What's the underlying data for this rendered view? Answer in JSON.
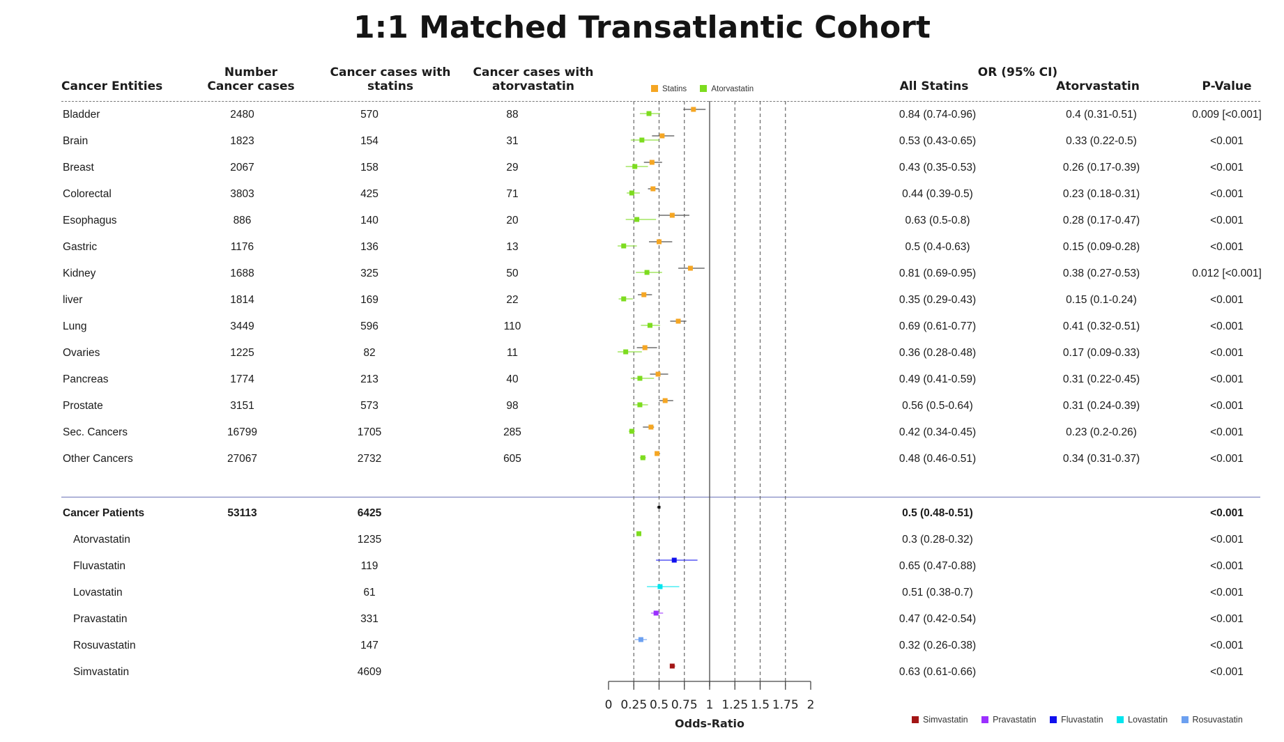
{
  "title": "1:1 Matched Transatlantic Cohort",
  "headers": {
    "entities": "Cancer Entities",
    "number_l1": "Number",
    "number_l2": "Cancer cases",
    "statins_l1": "Cancer cases with",
    "statins_l2": "statins",
    "atorva_l1": "Cancer cases with",
    "atorva_l2": "atorvastatin",
    "or_group": "OR (95% CI)",
    "all_statins": "All Statins",
    "atorvastatin": "Atorvastatin",
    "pvalue": "P-Value"
  },
  "legend_top": [
    {
      "label": "Statins",
      "color": "#f5a623"
    },
    {
      "label": "Atorvastatin",
      "color": "#7ddc1f"
    }
  ],
  "legend_bottom": [
    {
      "label": "Simvastatin",
      "color": "#a31515"
    },
    {
      "label": "Pravastatin",
      "color": "#9b30ff"
    },
    {
      "label": "Fluvastatin",
      "color": "#1010ee"
    },
    {
      "label": "Lovastatin",
      "color": "#00e5ee"
    },
    {
      "label": "Rosuvastatin",
      "color": "#6ca0f0"
    }
  ],
  "cancer_rows": [
    {
      "name": "Bladder",
      "n": "2480",
      "statins": "570",
      "atorva": "88",
      "or_all": "0.84 (0.74-0.96)",
      "or_atorva": "0.4 (0.31-0.51)",
      "p": "0.009 [<0.001]"
    },
    {
      "name": "Brain",
      "n": "1823",
      "statins": "154",
      "atorva": "31",
      "or_all": "0.53 (0.43-0.65)",
      "or_atorva": "0.33 (0.22-0.5)",
      "p": "<0.001"
    },
    {
      "name": "Breast",
      "n": "2067",
      "statins": "158",
      "atorva": "29",
      "or_all": "0.43 (0.35-0.53)",
      "or_atorva": "0.26 (0.17-0.39)",
      "p": "<0.001"
    },
    {
      "name": "Colorectal",
      "n": "3803",
      "statins": "425",
      "atorva": "71",
      "or_all": "0.44 (0.39-0.5)",
      "or_atorva": "0.23 (0.18-0.31)",
      "p": "<0.001"
    },
    {
      "name": "Esophagus",
      "n": "886",
      "statins": "140",
      "atorva": "20",
      "or_all": "0.63 (0.5-0.8)",
      "or_atorva": "0.28 (0.17-0.47)",
      "p": "<0.001"
    },
    {
      "name": "Gastric",
      "n": "1176",
      "statins": "136",
      "atorva": "13",
      "or_all": "0.5 (0.4-0.63)",
      "or_atorva": "0.15 (0.09-0.28)",
      "p": "<0.001"
    },
    {
      "name": "Kidney",
      "n": "1688",
      "statins": "325",
      "atorva": "50",
      "or_all": "0.81 (0.69-0.95)",
      "or_atorva": "0.38 (0.27-0.53)",
      "p": "0.012 [<0.001]"
    },
    {
      "name": "liver",
      "n": "1814",
      "statins": "169",
      "atorva": "22",
      "or_all": "0.35 (0.29-0.43)",
      "or_atorva": "0.15 (0.1-0.24)",
      "p": "<0.001"
    },
    {
      "name": "Lung",
      "n": "3449",
      "statins": "596",
      "atorva": "110",
      "or_all": "0.69 (0.61-0.77)",
      "or_atorva": "0.41 (0.32-0.51)",
      "p": "<0.001"
    },
    {
      "name": "Ovaries",
      "n": "1225",
      "statins": "82",
      "atorva": "11",
      "or_all": "0.36 (0.28-0.48)",
      "or_atorva": "0.17 (0.09-0.33)",
      "p": "<0.001"
    },
    {
      "name": "Pancreas",
      "n": "1774",
      "statins": "213",
      "atorva": "40",
      "or_all": "0.49 (0.41-0.59)",
      "or_atorva": "0.31 (0.22-0.45)",
      "p": "<0.001"
    },
    {
      "name": "Prostate",
      "n": "3151",
      "statins": "573",
      "atorva": "98",
      "or_all": "0.56 (0.5-0.64)",
      "or_atorva": "0.31 (0.24-0.39)",
      "p": "<0.001"
    },
    {
      "name": "Sec. Cancers",
      "n": "16799",
      "statins": "1705",
      "atorva": "285",
      "or_all": "0.42 (0.34-0.45)",
      "or_atorva": "0.23 (0.2-0.26)",
      "p": "<0.001"
    },
    {
      "name": "Other Cancers",
      "n": "27067",
      "statins": "2732",
      "atorva": "605",
      "or_all": "0.48 (0.46-0.51)",
      "or_atorva": "0.34 (0.31-0.37)",
      "p": "<0.001"
    }
  ],
  "patients_total": {
    "name": "Cancer Patients",
    "n": "53113",
    "statins": "6425",
    "or_all": "0.5 (0.48-0.51)",
    "p": "<0.001"
  },
  "statin_rows": [
    {
      "name": "Atorvastatin",
      "statins": "1235",
      "or_all": "0.3 (0.28-0.32)",
      "p": "<0.001"
    },
    {
      "name": "Fluvastatin",
      "statins": "119",
      "or_all": "0.65 (0.47-0.88)",
      "p": "<0.001"
    },
    {
      "name": "Lovastatin",
      "statins": "61",
      "or_all": "0.51 (0.38-0.7)",
      "p": "<0.001"
    },
    {
      "name": "Pravastatin",
      "statins": "331",
      "or_all": "0.47 (0.42-0.54)",
      "p": "<0.001"
    },
    {
      "name": "Rosuvastatin",
      "statins": "147",
      "or_all": "0.32 (0.26-0.38)",
      "p": "<0.001"
    },
    {
      "name": "Simvastatin",
      "statins": "4609",
      "or_all": "0.63 (0.61-0.66)",
      "p": "<0.001"
    }
  ],
  "chart_data": {
    "type": "scatter",
    "title": "1:1 Matched Transatlantic Cohort",
    "xlabel": "Odds-Ratio",
    "xlim": [
      0,
      2
    ],
    "xticks": [
      "0",
      "0.25",
      "0.5",
      "0.75",
      "1",
      "1.25",
      "1.5",
      "1.75",
      "2"
    ],
    "reference_lines": [
      0.25,
      0.5,
      0.75,
      1,
      1.25,
      1.5,
      1.75
    ],
    "cancer_series": [
      {
        "name": "Statins",
        "color": "#f5a623",
        "ci_color": "#555555",
        "points": [
          [
            0.84,
            0.74,
            0.96
          ],
          [
            0.53,
            0.43,
            0.65
          ],
          [
            0.43,
            0.35,
            0.53
          ],
          [
            0.44,
            0.39,
            0.5
          ],
          [
            0.63,
            0.5,
            0.8
          ],
          [
            0.5,
            0.4,
            0.63
          ],
          [
            0.81,
            0.69,
            0.95
          ],
          [
            0.35,
            0.29,
            0.43
          ],
          [
            0.69,
            0.61,
            0.77
          ],
          [
            0.36,
            0.28,
            0.48
          ],
          [
            0.49,
            0.41,
            0.59
          ],
          [
            0.56,
            0.5,
            0.64
          ],
          [
            0.42,
            0.34,
            0.45
          ],
          [
            0.48,
            0.46,
            0.51
          ]
        ]
      },
      {
        "name": "Atorvastatin",
        "color": "#7ddc1f",
        "ci_color": "#7ddc1f",
        "points": [
          [
            0.4,
            0.31,
            0.51
          ],
          [
            0.33,
            0.22,
            0.5
          ],
          [
            0.26,
            0.17,
            0.39
          ],
          [
            0.23,
            0.18,
            0.31
          ],
          [
            0.28,
            0.17,
            0.47
          ],
          [
            0.15,
            0.09,
            0.28
          ],
          [
            0.38,
            0.27,
            0.53
          ],
          [
            0.15,
            0.1,
            0.24
          ],
          [
            0.41,
            0.32,
            0.51
          ],
          [
            0.17,
            0.09,
            0.33
          ],
          [
            0.31,
            0.22,
            0.45
          ],
          [
            0.31,
            0.24,
            0.39
          ],
          [
            0.23,
            0.2,
            0.26
          ],
          [
            0.34,
            0.31,
            0.37
          ]
        ]
      }
    ],
    "patients_point": {
      "name": "Cancer Patients",
      "color": "#111111",
      "or": 0.5,
      "lo": 0.48,
      "hi": 0.51
    },
    "statin_points": [
      {
        "name": "Atorvastatin",
        "color": "#7ddc1f",
        "or": 0.3,
        "lo": 0.28,
        "hi": 0.32
      },
      {
        "name": "Fluvastatin",
        "color": "#1010ee",
        "or": 0.65,
        "lo": 0.47,
        "hi": 0.88
      },
      {
        "name": "Lovastatin",
        "color": "#00e5ee",
        "or": 0.51,
        "lo": 0.38,
        "hi": 0.7
      },
      {
        "name": "Pravastatin",
        "color": "#9b30ff",
        "or": 0.47,
        "lo": 0.42,
        "hi": 0.54
      },
      {
        "name": "Rosuvastatin",
        "color": "#6ca0f0",
        "or": 0.32,
        "lo": 0.26,
        "hi": 0.38
      },
      {
        "name": "Simvastatin",
        "color": "#a31515",
        "or": 0.63,
        "lo": 0.61,
        "hi": 0.66
      }
    ]
  }
}
